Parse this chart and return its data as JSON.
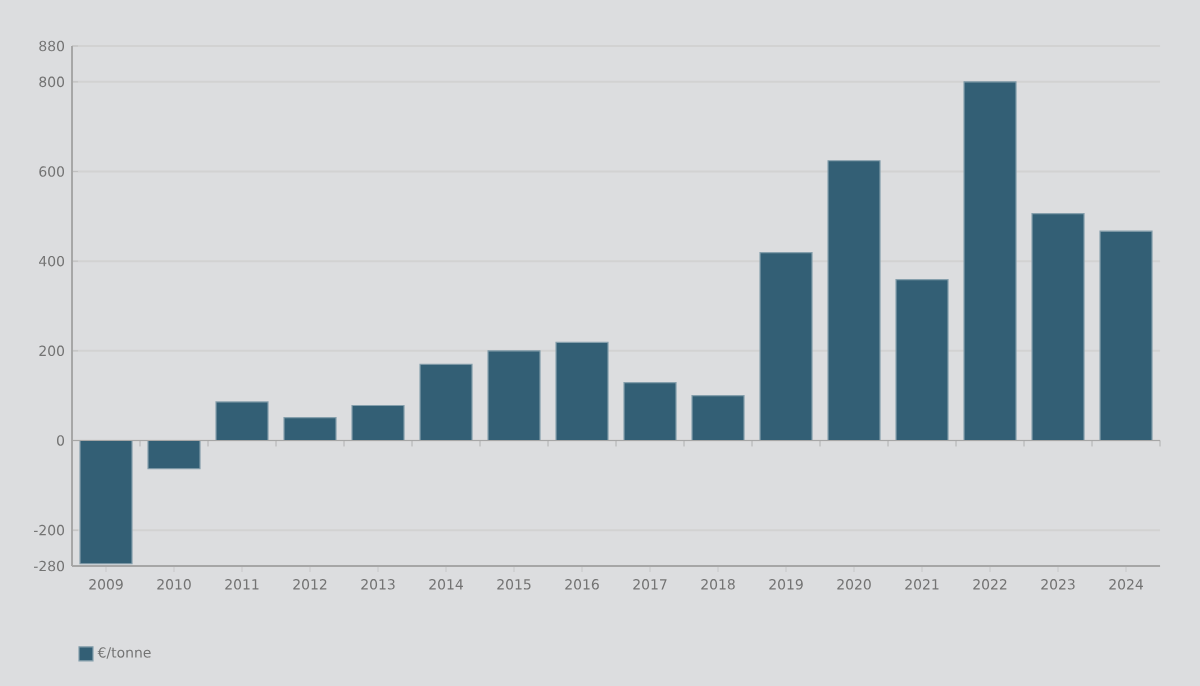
{
  "chart_data": {
    "type": "bar",
    "categories": [
      "2009",
      "2010",
      "2011",
      "2012",
      "2013",
      "2014",
      "2015",
      "2016",
      "2017",
      "2018",
      "2019",
      "2020",
      "2021",
      "2022",
      "2023",
      "2024"
    ],
    "series": [
      {
        "name": "€/tonne",
        "color": "#335f75",
        "values": [
          -275,
          -63,
          86,
          51,
          78,
          170,
          200,
          219,
          129,
          100,
          419,
          624,
          359,
          800,
          506,
          467
        ]
      }
    ],
    "ylim": [
      -280,
      880
    ],
    "yticks": [
      -280,
      -200,
      0,
      200,
      400,
      600,
      800,
      880
    ],
    "grid": "y",
    "legend": "bottom left"
  }
}
